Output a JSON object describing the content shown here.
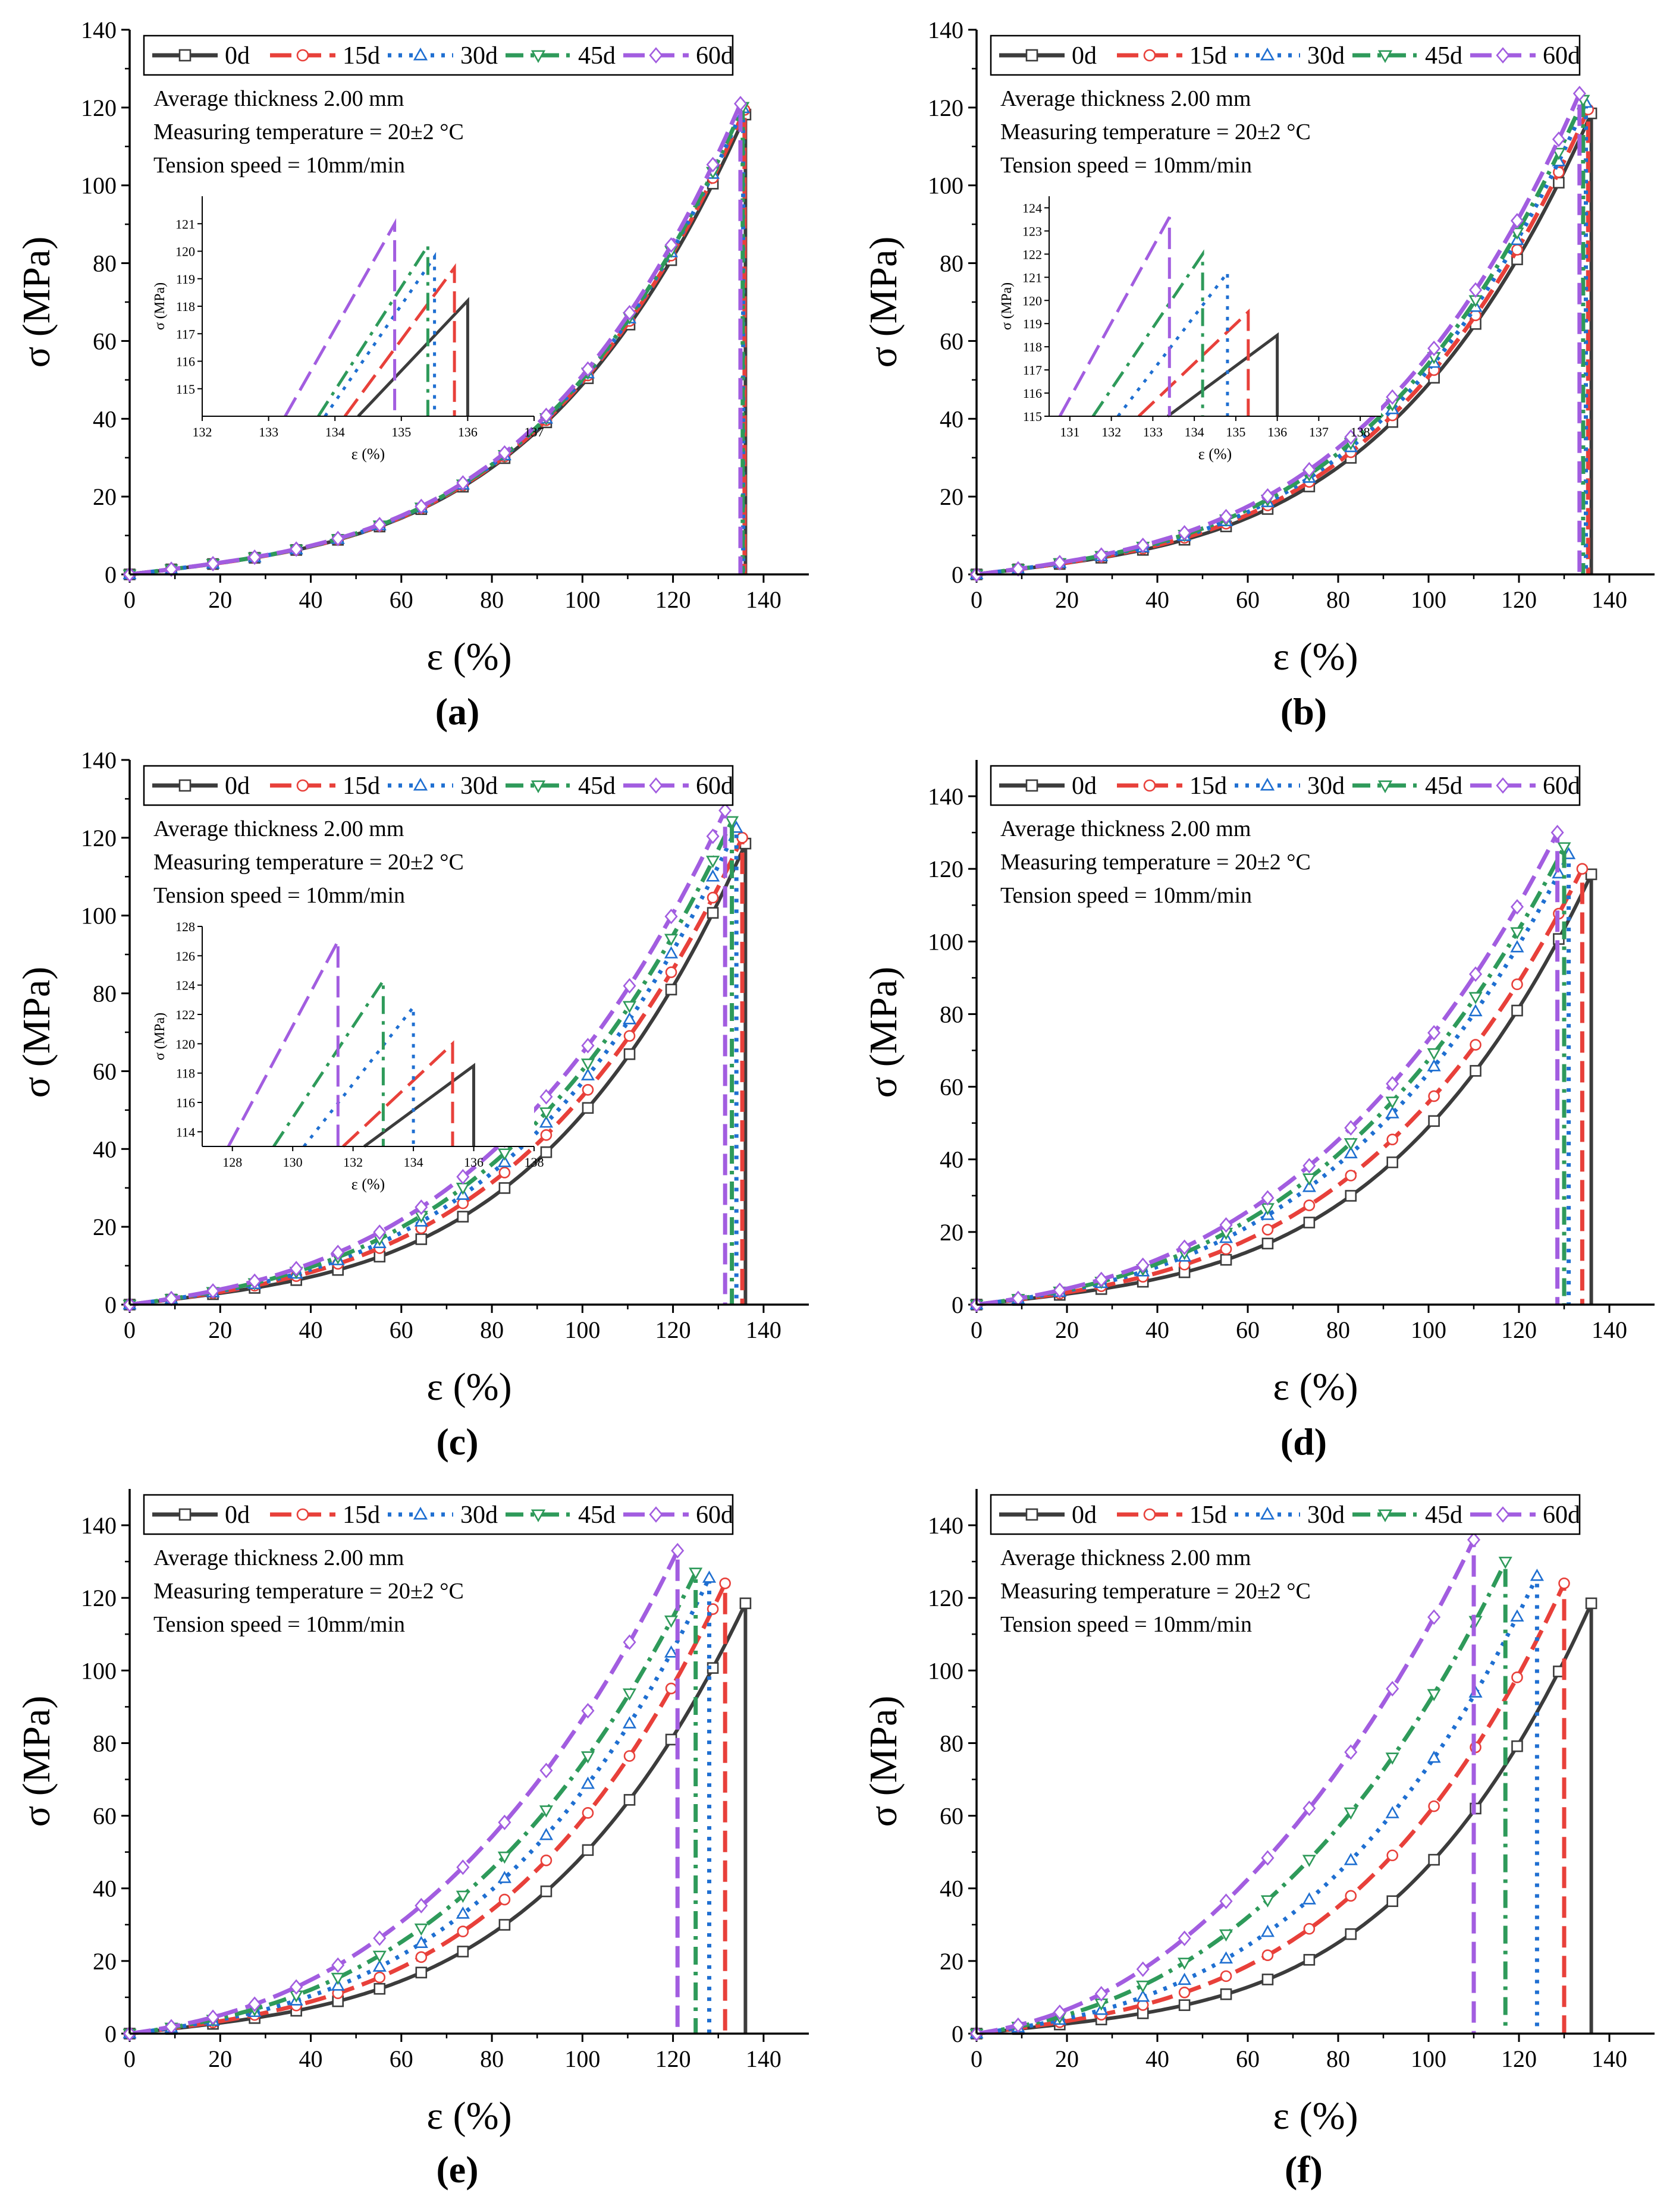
{
  "panel_labels": [
    "(a)",
    "(b)",
    "(c)",
    "(d)",
    "(e)",
    "(f)"
  ],
  "annotation_lines": [
    "Average thickness 2.00 mm",
    "Measuring temperature = 20±2 °C",
    "Tension speed = 10mm/min"
  ],
  "xlabel": "ε (%)",
  "ylabel": "σ (MPa)",
  "inset_xlabel": "ε (%)",
  "inset_ylabel": "σ (MPa)",
  "legend_labels": [
    "0d",
    "15d",
    "30d",
    "45d",
    "60d"
  ],
  "series_styles": [
    {
      "name": "0d",
      "color": "#3c3c3c",
      "dash": "solid",
      "marker": "square"
    },
    {
      "name": "15d",
      "color": "#e8403a",
      "dash": "dash",
      "marker": "circle"
    },
    {
      "name": "30d",
      "color": "#1f6fd1",
      "dash": "dot",
      "marker": "triangle-up"
    },
    {
      "name": "45d",
      "color": "#2e9a5a",
      "dash": "dashdot",
      "marker": "triangle-down"
    },
    {
      "name": "60d",
      "color": "#a25de0",
      "dash": "dash",
      "marker": "diamond"
    }
  ],
  "chart_data": [
    {
      "type": "line",
      "panel": "(a)",
      "xlim": [
        0,
        150
      ],
      "ylim": [
        0,
        140
      ],
      "xticks": [
        0,
        20,
        40,
        60,
        80,
        100,
        120,
        140
      ],
      "yticks": [
        0,
        20,
        40,
        60,
        80,
        100,
        120,
        140
      ],
      "failure": [
        {
          "name": "0d",
          "x": 136.0,
          "y": 118.2
        },
        {
          "name": "15d",
          "x": 135.8,
          "y": 119.4
        },
        {
          "name": "30d",
          "x": 135.5,
          "y": 119.8
        },
        {
          "name": "45d",
          "x": 135.4,
          "y": 120.2
        },
        {
          "name": "60d",
          "x": 134.9,
          "y": 121.0
        }
      ],
      "shape_k": [
        1.0,
        1.0,
        1.0,
        1.0,
        1.0
      ],
      "inset": {
        "xlim": [
          132,
          137
        ],
        "ylim": [
          114,
          122
        ],
        "xticks": [
          132,
          133,
          134,
          135,
          136,
          137
        ],
        "yticks": [
          115,
          116,
          117,
          118,
          119,
          120,
          121
        ],
        "points": [
          {
            "name": "0d",
            "x": 136.0,
            "y": 118.2
          },
          {
            "name": "15d",
            "x": 135.8,
            "y": 119.4
          },
          {
            "name": "30d",
            "x": 135.5,
            "y": 119.8
          },
          {
            "name": "45d",
            "x": 135.4,
            "y": 120.2
          },
          {
            "name": "60d",
            "x": 134.9,
            "y": 121.0
          }
        ]
      }
    },
    {
      "type": "line",
      "panel": "(b)",
      "xlim": [
        0,
        150
      ],
      "ylim": [
        0,
        140
      ],
      "xticks": [
        0,
        20,
        40,
        60,
        80,
        100,
        120,
        140
      ],
      "yticks": [
        0,
        20,
        40,
        60,
        80,
        100,
        120,
        140
      ],
      "failure": [
        {
          "name": "0d",
          "x": 136.0,
          "y": 118.5
        },
        {
          "name": "15d",
          "x": 135.3,
          "y": 119.5
        },
        {
          "name": "30d",
          "x": 134.8,
          "y": 121.2
        },
        {
          "name": "45d",
          "x": 134.2,
          "y": 122.0
        },
        {
          "name": "60d",
          "x": 133.4,
          "y": 123.6
        }
      ],
      "shape_k": [
        1.0,
        1.03,
        1.05,
        1.07,
        1.09
      ],
      "inset": {
        "xlim": [
          130.5,
          138.5
        ],
        "ylim": [
          115,
          124.5
        ],
        "xticks": [
          131,
          132,
          133,
          134,
          135,
          136,
          137,
          138
        ],
        "yticks": [
          115,
          116,
          117,
          118,
          119,
          120,
          121,
          122,
          123,
          124
        ],
        "points": [
          {
            "name": "0d",
            "x": 136.0,
            "y": 118.5
          },
          {
            "name": "15d",
            "x": 135.3,
            "y": 119.5
          },
          {
            "name": "30d",
            "x": 134.8,
            "y": 121.2
          },
          {
            "name": "45d",
            "x": 134.2,
            "y": 122.0
          },
          {
            "name": "60d",
            "x": 133.4,
            "y": 123.6
          }
        ]
      }
    },
    {
      "type": "line",
      "panel": "(c)",
      "xlim": [
        0,
        150
      ],
      "ylim": [
        0,
        140
      ],
      "xticks": [
        0,
        20,
        40,
        60,
        80,
        100,
        120,
        140
      ],
      "yticks": [
        0,
        20,
        40,
        60,
        80,
        100,
        120,
        140
      ],
      "failure": [
        {
          "name": "0d",
          "x": 136.0,
          "y": 118.5
        },
        {
          "name": "15d",
          "x": 135.3,
          "y": 120.0
        },
        {
          "name": "30d",
          "x": 134.0,
          "y": 122.5
        },
        {
          "name": "45d",
          "x": 133.0,
          "y": 124.3
        },
        {
          "name": "60d",
          "x": 131.5,
          "y": 127.0
        }
      ],
      "shape_k": [
        1.0,
        1.12,
        1.16,
        1.2,
        1.25
      ],
      "inset": {
        "xlim": [
          127,
          138
        ],
        "ylim": [
          113,
          128
        ],
        "xticks": [
          128,
          130,
          132,
          134,
          136,
          138
        ],
        "yticks": [
          114,
          116,
          118,
          120,
          122,
          124,
          126,
          128
        ],
        "points": [
          {
            "name": "0d",
            "x": 136.0,
            "y": 118.5
          },
          {
            "name": "15d",
            "x": 135.3,
            "y": 120.0
          },
          {
            "name": "30d",
            "x": 134.0,
            "y": 122.5
          },
          {
            "name": "45d",
            "x": 133.0,
            "y": 124.3
          },
          {
            "name": "60d",
            "x": 131.5,
            "y": 127.0
          }
        ]
      }
    },
    {
      "type": "line",
      "panel": "(d)",
      "xlim": [
        0,
        150
      ],
      "ylim": [
        0,
        150
      ],
      "xticks": [
        0,
        20,
        40,
        60,
        80,
        100,
        120,
        140
      ],
      "yticks": [
        0,
        20,
        40,
        60,
        80,
        100,
        120,
        140
      ],
      "failure": [
        {
          "name": "0d",
          "x": 136.0,
          "y": 118.5
        },
        {
          "name": "15d",
          "x": 134.0,
          "y": 120.0
        },
        {
          "name": "30d",
          "x": 131.0,
          "y": 124.0
        },
        {
          "name": "45d",
          "x": 130.0,
          "y": 126.0
        },
        {
          "name": "60d",
          "x": 128.5,
          "y": 130.0
        }
      ],
      "shape_k": [
        1.0,
        1.15,
        1.25,
        1.3,
        1.35
      ]
    },
    {
      "type": "line",
      "panel": "(e)",
      "xlim": [
        0,
        150
      ],
      "ylim": [
        0,
        150
      ],
      "xticks": [
        0,
        20,
        40,
        60,
        80,
        100,
        120,
        140
      ],
      "yticks": [
        0,
        20,
        40,
        60,
        80,
        100,
        120,
        140
      ],
      "failure": [
        {
          "name": "0d",
          "x": 136.0,
          "y": 118.5
        },
        {
          "name": "15d",
          "x": 131.5,
          "y": 124.0
        },
        {
          "name": "30d",
          "x": 128.0,
          "y": 125.5
        },
        {
          "name": "45d",
          "x": 125.0,
          "y": 127.0
        },
        {
          "name": "60d",
          "x": 121.0,
          "y": 133.0
        }
      ],
      "shape_k": [
        1.0,
        1.1,
        1.2,
        1.3,
        1.4
      ]
    },
    {
      "type": "line",
      "panel": "(f)",
      "xlim": [
        0,
        150
      ],
      "ylim": [
        0,
        150
      ],
      "xticks": [
        0,
        20,
        40,
        60,
        80,
        100,
        120,
        140
      ],
      "yticks": [
        0,
        20,
        40,
        60,
        80,
        100,
        120,
        140
      ],
      "failure": [
        {
          "name": "0d",
          "x": 136.0,
          "y": 118.5
        },
        {
          "name": "15d",
          "x": 130.0,
          "y": 124.0
        },
        {
          "name": "30d",
          "x": 124.0,
          "y": 126.0
        },
        {
          "name": "45d",
          "x": 117.0,
          "y": 130.0
        },
        {
          "name": "60d",
          "x": 110.0,
          "y": 136.0
        }
      ],
      "shape_k": [
        0.9,
        1.1,
        1.25,
        1.4,
        1.55
      ]
    }
  ]
}
